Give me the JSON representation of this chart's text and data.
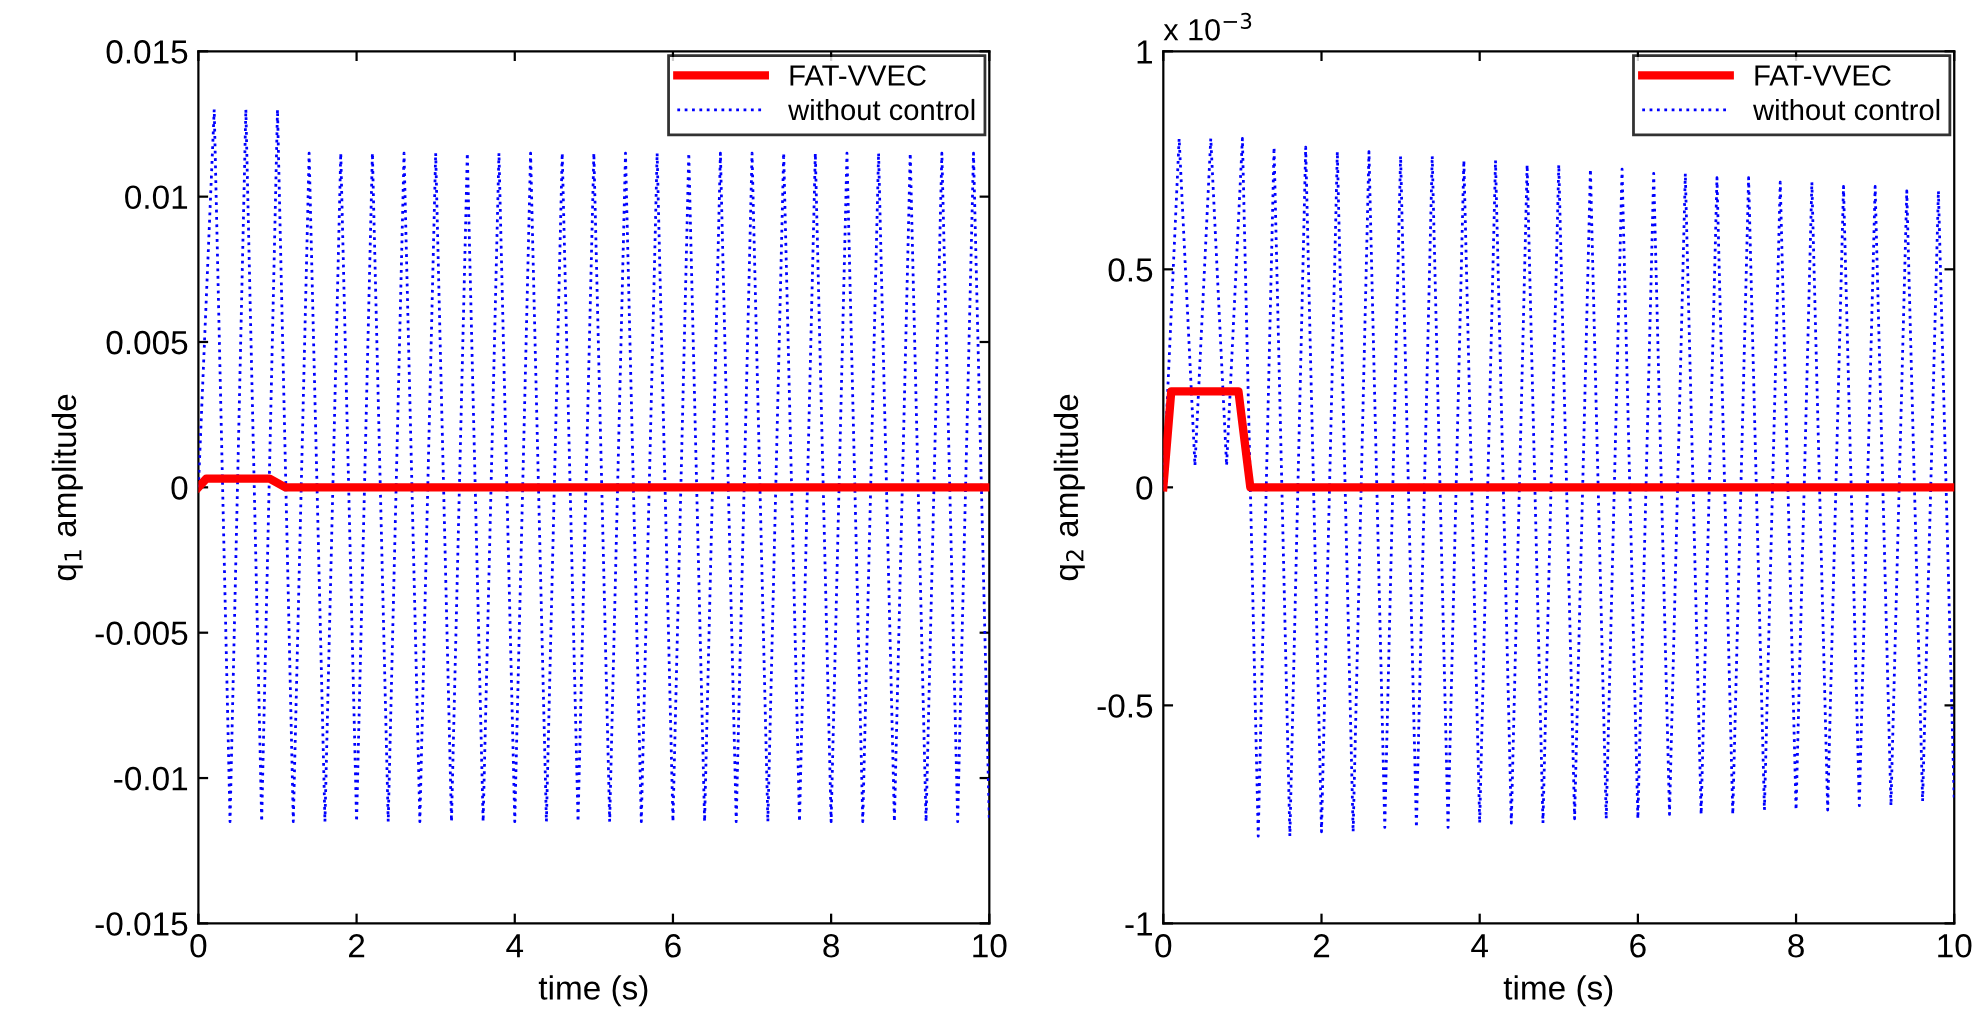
{
  "chart_data": [
    {
      "type": "line",
      "xlabel": "time (s)",
      "ylabel": "q$_{1}$ amplitude",
      "xlim": [
        0,
        10
      ],
      "ylim": [
        -0.015,
        0.015
      ],
      "xticks": [
        0,
        2,
        4,
        6,
        8,
        10
      ],
      "yticks": [
        -0.015,
        -0.01,
        -0.005,
        0,
        0.005,
        0.01,
        0.015
      ],
      "legend": "top right",
      "grid": false,
      "series": [
        {
          "name": "FAT-VVEC",
          "color": "#ff0000",
          "line_style": "solid",
          "x": [
            0,
            0.1,
            0.9,
            1.1,
            10
          ],
          "values": [
            0,
            0.0003,
            0.0003,
            0,
            0
          ]
        },
        {
          "name": "without control",
          "color": "#0000ff",
          "line_style": "dotted",
          "x": [
            0,
            0.2,
            0.4,
            0.6,
            0.8,
            1.0,
            1.2,
            1.4,
            1.6,
            1.8,
            2.0,
            2.2,
            2.4,
            2.6,
            2.8,
            3.0,
            3.2,
            3.4,
            3.6,
            3.8,
            4.0,
            4.2,
            4.4,
            4.6,
            4.8,
            5.0,
            5.2,
            5.4,
            5.6,
            5.8,
            6.0,
            6.2,
            6.4,
            6.6,
            6.8,
            7.0,
            7.2,
            7.4,
            7.6,
            7.8,
            8.0,
            8.2,
            8.4,
            8.6,
            8.8,
            9.0,
            9.2,
            9.4,
            9.6,
            9.8,
            10.0
          ],
          "values": [
            0,
            0.013,
            -0.0115,
            0.013,
            -0.0115,
            0.013,
            -0.0115,
            0.0115,
            -0.0115,
            0.0115,
            -0.0115,
            0.0115,
            -0.0115,
            0.0115,
            -0.0115,
            0.0115,
            -0.0115,
            0.0115,
            -0.0115,
            0.0115,
            -0.0115,
            0.0115,
            -0.0115,
            0.0115,
            -0.0115,
            0.0115,
            -0.0115,
            0.0115,
            -0.0115,
            0.0115,
            -0.0115,
            0.0115,
            -0.0115,
            0.0115,
            -0.0115,
            0.0115,
            -0.0115,
            0.0115,
            -0.0115,
            0.0115,
            -0.0115,
            0.0115,
            -0.0115,
            0.0115,
            -0.0115,
            0.0115,
            -0.0115,
            0.0115,
            -0.0115,
            0.0115,
            -0.0115
          ]
        }
      ]
    },
    {
      "type": "line",
      "xlabel": "time (s)",
      "ylabel": "q$_{2}$ amplitude",
      "annotations": [
        "x 10$^{−3}$"
      ],
      "xlim": [
        0,
        10
      ],
      "ylim": [
        -1,
        1
      ],
      "xticks": [
        0,
        2,
        4,
        6,
        8,
        10
      ],
      "yticks": [
        -1,
        -0.5,
        0,
        0.5,
        1
      ],
      "legend": "top right",
      "grid": false,
      "series": [
        {
          "name": "FAT-VVEC",
          "color": "#ff0000",
          "line_style": "solid",
          "x": [
            0,
            0.1,
            0.95,
            1.1,
            10
          ],
          "values": [
            0,
            0.22,
            0.22,
            0,
            0
          ]
        },
        {
          "name": "without control",
          "color": "#0000ff",
          "line_style": "dotted",
          "x": [
            0,
            0.2,
            0.4,
            0.6,
            0.8,
            1.0,
            1.2,
            1.4,
            1.6,
            1.8,
            2.0,
            2.2,
            2.4,
            2.6,
            2.8,
            3.0,
            3.2,
            3.4,
            3.6,
            3.8,
            4.0,
            4.2,
            4.4,
            4.6,
            4.8,
            5.0,
            5.2,
            5.4,
            5.6,
            5.8,
            6.0,
            6.2,
            6.4,
            6.6,
            6.8,
            7.0,
            7.2,
            7.4,
            7.6,
            7.8,
            8.0,
            8.2,
            8.4,
            8.6,
            8.8,
            9.0,
            9.2,
            9.4,
            9.6,
            9.8,
            10.0
          ],
          "values": [
            0,
            0.8,
            0.05,
            0.8,
            0.05,
            0.8,
            -0.8,
            0.78,
            -0.8,
            0.78,
            -0.79,
            0.77,
            -0.79,
            0.77,
            -0.78,
            0.76,
            -0.78,
            0.76,
            -0.78,
            0.75,
            -0.77,
            0.75,
            -0.77,
            0.74,
            -0.77,
            0.74,
            -0.76,
            0.73,
            -0.76,
            0.73,
            -0.76,
            0.72,
            -0.75,
            0.72,
            -0.75,
            0.71,
            -0.75,
            0.71,
            -0.74,
            0.7,
            -0.74,
            0.7,
            -0.74,
            0.69,
            -0.73,
            0.69,
            -0.73,
            0.68,
            -0.72,
            0.68,
            -0.72
          ]
        }
      ]
    }
  ]
}
